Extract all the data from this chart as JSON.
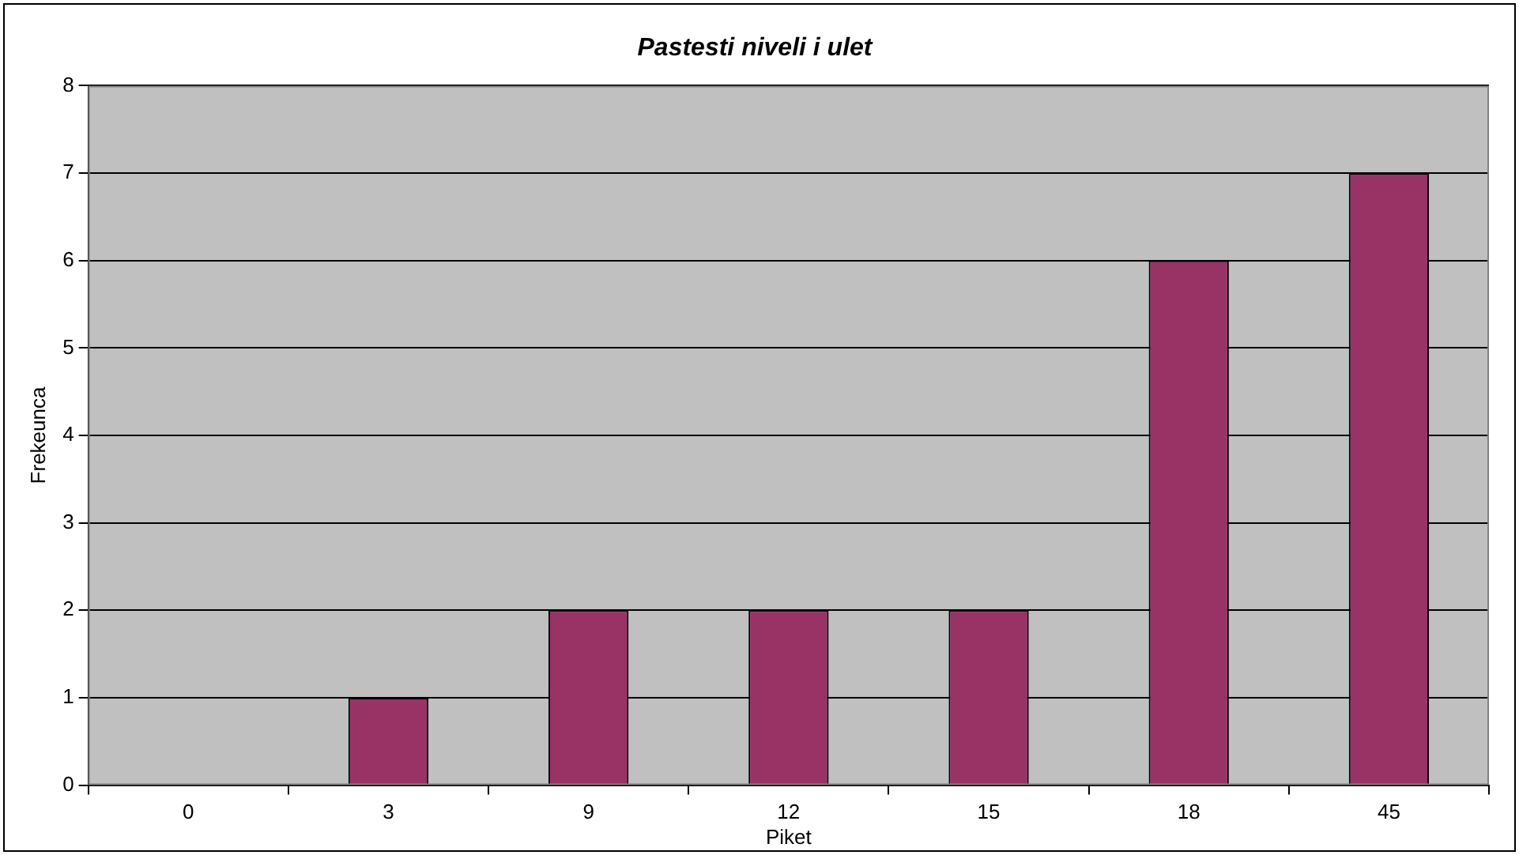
{
  "chart_data": {
    "type": "bar",
    "title": "Pastesti niveli i ulet",
    "xlabel": "Piket",
    "ylabel": "Frekeunca",
    "categories": [
      "0",
      "3",
      "9",
      "12",
      "15",
      "18",
      "45"
    ],
    "values": [
      0,
      1,
      2,
      2,
      2,
      6,
      7
    ],
    "color": "#993366",
    "ylim": [
      0,
      8
    ],
    "yticks": [
      0,
      1,
      2,
      3,
      4,
      5,
      6,
      7,
      8
    ],
    "grid": "y",
    "legend": false
  }
}
